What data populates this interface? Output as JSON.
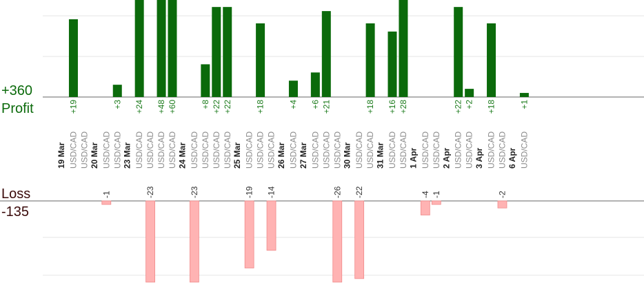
{
  "chart_data": {
    "type": "bar",
    "profit_label": "Profit",
    "profit_total": "+360",
    "loss_label": "Loss",
    "loss_total": "-135",
    "days": [
      {
        "date": "19 Mar",
        "trades": [
          {
            "instrument": "USD/CAD",
            "value": 19,
            "label": "+19"
          },
          {
            "instrument": "USD/CAD",
            "value": 0,
            "label": ""
          }
        ]
      },
      {
        "date": "20 Mar",
        "trades": [
          {
            "instrument": "USD/CAD",
            "value": -1,
            "label": "-1"
          },
          {
            "instrument": "USD/CAD",
            "value": 3,
            "label": "+3"
          }
        ]
      },
      {
        "date": "23 Mar",
        "trades": [
          {
            "instrument": "USD/CAD",
            "value": 24,
            "label": "+24"
          },
          {
            "instrument": "USD/CAD",
            "value": -23,
            "label": "-23"
          },
          {
            "instrument": "USD/CAD",
            "value": 48,
            "label": "+48"
          },
          {
            "instrument": "USD/CAD",
            "value": 60,
            "label": "+60"
          }
        ]
      },
      {
        "date": "24 Mar",
        "trades": [
          {
            "instrument": "USD/CAD",
            "value": -23,
            "label": "-23"
          },
          {
            "instrument": "USD/CAD",
            "value": 8,
            "label": "+8"
          },
          {
            "instrument": "USD/CAD",
            "value": 22,
            "label": "+22"
          },
          {
            "instrument": "USD/CAD",
            "value": 22,
            "label": "+22"
          }
        ]
      },
      {
        "date": "25 Mar",
        "trades": [
          {
            "instrument": "USD/CAD",
            "value": -19,
            "label": "-19"
          },
          {
            "instrument": "USD/CAD",
            "value": 18,
            "label": "+18"
          },
          {
            "instrument": "USD/CAD",
            "value": -14,
            "label": "-14"
          }
        ]
      },
      {
        "date": "26 Mar",
        "trades": [
          {
            "instrument": "USD/CAD",
            "value": 4,
            "label": "+4"
          }
        ]
      },
      {
        "date": "27 Mar",
        "trades": [
          {
            "instrument": "USD/CAD",
            "value": 6,
            "label": "+6"
          },
          {
            "instrument": "USD/CAD",
            "value": 21,
            "label": "+21"
          },
          {
            "instrument": "USD/CAD",
            "value": -26,
            "label": "-26"
          }
        ]
      },
      {
        "date": "30 Mar",
        "trades": [
          {
            "instrument": "USD/CAD",
            "value": -22,
            "label": "-22"
          },
          {
            "instrument": "USD/CAD",
            "value": 18,
            "label": "+18"
          }
        ]
      },
      {
        "date": "31 Mar",
        "trades": [
          {
            "instrument": "USD/CAD",
            "value": 16,
            "label": "+16"
          },
          {
            "instrument": "USD/CAD",
            "value": 28,
            "label": "+28"
          }
        ]
      },
      {
        "date": "1 Apr",
        "trades": [
          {
            "instrument": "USD/CAD",
            "value": -4,
            "label": "-4"
          },
          {
            "instrument": "USD/CAD",
            "value": -1,
            "label": "-1"
          }
        ]
      },
      {
        "date": "2 Apr",
        "trades": [
          {
            "instrument": "USD/CAD",
            "value": 22,
            "label": "+22"
          },
          {
            "instrument": "USD/CAD",
            "value": 2,
            "label": "+2"
          }
        ]
      },
      {
        "date": "3 Apr",
        "trades": [
          {
            "instrument": "USD/CAD",
            "value": 18,
            "label": "+18"
          },
          {
            "instrument": "USD/CAD",
            "value": -2,
            "label": "-2"
          }
        ]
      },
      {
        "date": "6 Apr",
        "trades": [
          {
            "instrument": "USD/CAD",
            "value": 1,
            "label": "+1"
          }
        ]
      }
    ],
    "colors": {
      "profit": "#0b6a0b",
      "loss": "#ffb3b3",
      "grid": "#e6e6e6",
      "axis": "#666666"
    },
    "grid": true
  }
}
